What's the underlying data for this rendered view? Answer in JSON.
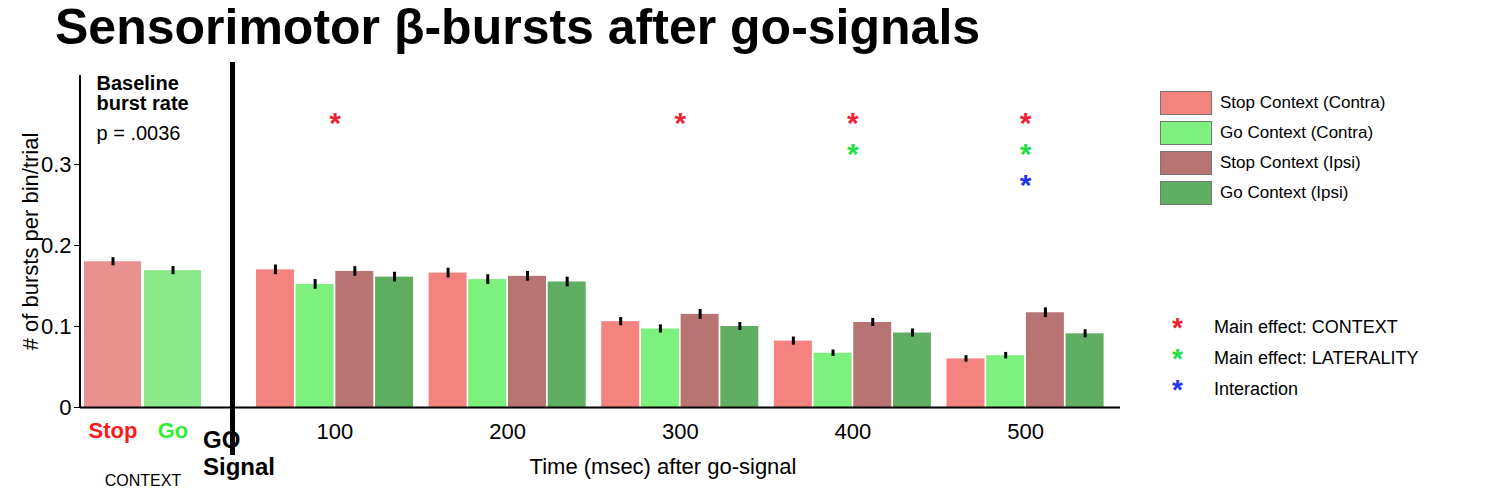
{
  "chart_data": {
    "type": "bar",
    "title": "Sensorimotor β-bursts after go-signals",
    "ylabel": "# of bursts per bin/trial",
    "xlabel": "Time (msec) after go-signal",
    "ylim": [
      0,
      0.41
    ],
    "yticks": [
      0,
      0.1,
      0.2,
      0.3
    ],
    "categories": [
      "100",
      "200",
      "300",
      "400",
      "500"
    ],
    "series": [
      {
        "name": "Stop Context (Contra)",
        "color": "#f4827f",
        "values": [
          0.17,
          0.166,
          0.106,
          0.082,
          0.06
        ],
        "errors": [
          0.006,
          0.006,
          0.005,
          0.005,
          0.004
        ]
      },
      {
        "name": "Go Context (Contra)",
        "color": "#7df07d",
        "values": [
          0.152,
          0.158,
          0.097,
          0.067,
          0.064
        ],
        "errors": [
          0.006,
          0.006,
          0.005,
          0.004,
          0.004
        ]
      },
      {
        "name": "Stop Context (Ipsi)",
        "color": "#b87472",
        "values": [
          0.168,
          0.162,
          0.115,
          0.105,
          0.117
        ],
        "errors": [
          0.006,
          0.006,
          0.006,
          0.005,
          0.006
        ]
      },
      {
        "name": "Go Context (Ipsi)",
        "color": "#5fae62",
        "values": [
          0.161,
          0.155,
          0.1,
          0.092,
          0.091
        ],
        "errors": [
          0.006,
          0.006,
          0.005,
          0.005,
          0.005
        ]
      }
    ],
    "legend": "right",
    "baseline": {
      "title": "Baseline burst rate",
      "annotation": "p = .0036",
      "xlabel": "CONTEXT",
      "categories": [
        "Stop",
        "Go"
      ],
      "colors": [
        "#e8918f",
        "#8ae88a"
      ],
      "label_colors": [
        "#ff1a1a",
        "#33ee33"
      ],
      "values": [
        0.18,
        0.169
      ],
      "errors": [
        0.005,
        0.005
      ]
    },
    "event_label": "GO Signal",
    "significance": [
      {
        "name": "Main effect: CONTEXT",
        "color": "#ee2233",
        "symbol": "*",
        "categories": [
          "100",
          "300",
          "400",
          "500"
        ]
      },
      {
        "name": "Main effect: LATERALITY",
        "color": "#22dd44",
        "symbol": "*",
        "categories": [
          "400",
          "500"
        ]
      },
      {
        "name": "Interaction",
        "color": "#2233ee",
        "symbol": "*",
        "categories": [
          "500"
        ]
      }
    ]
  }
}
